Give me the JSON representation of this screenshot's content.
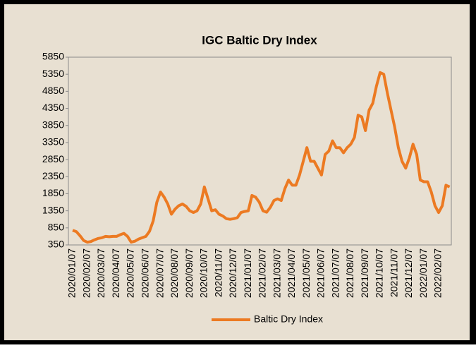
{
  "chart_data": {
    "type": "line",
    "title": "IGC Baltic Dry Index",
    "categories": [
      "2020/01/07",
      null,
      null,
      null,
      "2020/02/07",
      null,
      null,
      null,
      "2020/03/07",
      null,
      null,
      null,
      "2020/04/07",
      null,
      null,
      null,
      "2020/05/07",
      null,
      null,
      null,
      "2020/06/07",
      null,
      null,
      null,
      "2020/07/07",
      null,
      null,
      null,
      "2020/08/07",
      null,
      null,
      null,
      "2020/09/07",
      null,
      null,
      null,
      "2020/10/07",
      null,
      null,
      null,
      "2020/11/07",
      null,
      null,
      null,
      "2020/12/07",
      null,
      null,
      null,
      "2021/01/07",
      null,
      null,
      null,
      "2021/02/07",
      null,
      null,
      null,
      "2021/03/07",
      null,
      null,
      null,
      "2021/04/07",
      null,
      null,
      null,
      "2021/05/07",
      null,
      null,
      null,
      "2021/06/07",
      null,
      null,
      null,
      "2021/07/07",
      null,
      null,
      null,
      "2021/08/07",
      null,
      null,
      null,
      "2021/09/07",
      null,
      null,
      null,
      "2021/10/07",
      null,
      null,
      null,
      "2021/11/07",
      null,
      null,
      null,
      "2021/12/07",
      null,
      null,
      null,
      "2022/01/07",
      null,
      null,
      null,
      "2022/02/07",
      null,
      null,
      null
    ],
    "series": [
      {
        "name": "Baltic Dry Index",
        "color": "#ec7a22",
        "values": [
          780,
          740,
          620,
          480,
          430,
          450,
          500,
          540,
          560,
          600,
          590,
          600,
          600,
          650,
          690,
          600,
          430,
          460,
          520,
          560,
          600,
          750,
          1050,
          1600,
          1900,
          1750,
          1550,
          1250,
          1400,
          1500,
          1550,
          1480,
          1350,
          1300,
          1350,
          1550,
          2050,
          1700,
          1350,
          1380,
          1250,
          1200,
          1120,
          1100,
          1120,
          1150,
          1300,
          1330,
          1350,
          1800,
          1750,
          1600,
          1350,
          1310,
          1450,
          1650,
          1700,
          1650,
          2000,
          2250,
          2100,
          2100,
          2400,
          2800,
          3200,
          2800,
          2800,
          2600,
          2400,
          3000,
          3100,
          3400,
          3200,
          3200,
          3050,
          3200,
          3300,
          3500,
          4150,
          4100,
          3700,
          4300,
          4500,
          5000,
          5400,
          5350,
          4800,
          4300,
          3800,
          3200,
          2800,
          2600,
          2900,
          3300,
          3000,
          2250,
          2200,
          2200,
          1900,
          1500,
          1300,
          1500,
          2100,
          2050
        ]
      }
    ],
    "ylim": [
      350,
      5850
    ],
    "yticks": [
      350,
      850,
      1350,
      1850,
      2350,
      2850,
      3350,
      3850,
      4350,
      4850,
      5350,
      5850
    ],
    "grid": false,
    "legend": "bottom"
  }
}
